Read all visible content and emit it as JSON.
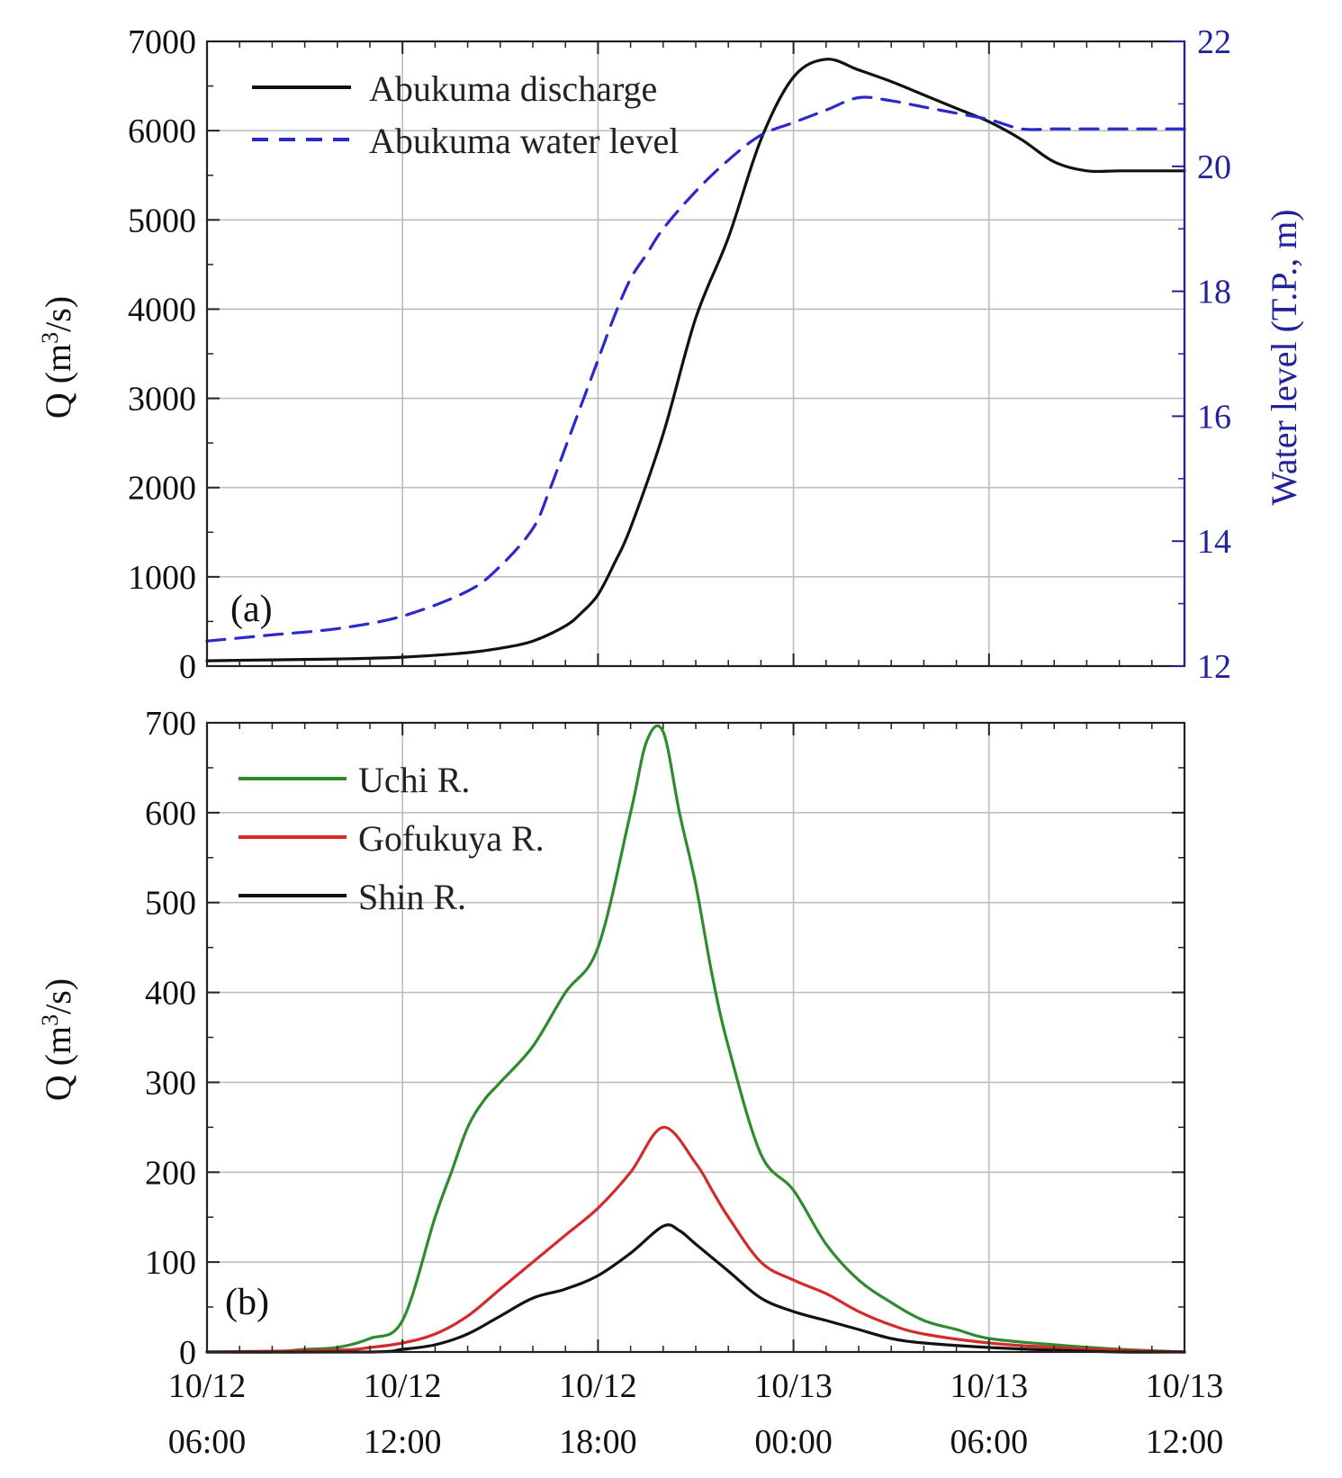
{
  "chart_data": [
    {
      "type": "line",
      "panel_label": "(a)",
      "x_unit": "hours since 10/12 06:00",
      "xlim": [
        0,
        30
      ],
      "ylabel_prefix": "Q (m",
      "ylabel_sup": "3",
      "ylabel_suffix": "/s)",
      "ylim": [
        0,
        7000
      ],
      "yticks": [
        "0",
        "1000",
        "2000",
        "3000",
        "4000",
        "5000",
        "6000",
        "7000"
      ],
      "y2label": "Water level (T.P., m)",
      "y2lim": [
        12,
        22
      ],
      "y2ticks": [
        "12",
        "14",
        "16",
        "18",
        "20",
        "22"
      ],
      "grid": true,
      "legend_position": "top-left",
      "series": [
        {
          "name": "Abukuma discharge",
          "axis": "left",
          "color": "#111111",
          "dash": "solid",
          "x": [
            0,
            2,
            4,
            6,
            8,
            9,
            10,
            11,
            11.5,
            12,
            12.5,
            13,
            14,
            15,
            16,
            17,
            18,
            19,
            20,
            21,
            22,
            23,
            24,
            25,
            26,
            27,
            28,
            29,
            30
          ],
          "y": [
            60,
            70,
            80,
            100,
            150,
            200,
            280,
            450,
            600,
            800,
            1150,
            1550,
            2600,
            3900,
            4800,
            5900,
            6600,
            6800,
            6680,
            6550,
            6400,
            6250,
            6100,
            5900,
            5650,
            5550,
            5550,
            5550,
            5550
          ]
        },
        {
          "name": "Abukuma water level",
          "axis": "right",
          "color": "#2a2acc",
          "dash": "dashed",
          "x": [
            0,
            2,
            4,
            6,
            8,
            9,
            10,
            10.5,
            11,
            11.5,
            12,
            12.5,
            13,
            13.5,
            14,
            15,
            16,
            17,
            18,
            19,
            20,
            21,
            22,
            23,
            24,
            25,
            26,
            27,
            28,
            29,
            30
          ],
          "y": [
            12.4,
            12.5,
            12.6,
            12.8,
            13.2,
            13.6,
            14.2,
            14.8,
            15.5,
            16.2,
            16.9,
            17.6,
            18.2,
            18.6,
            19.0,
            19.6,
            20.1,
            20.5,
            20.7,
            20.9,
            21.1,
            21.05,
            20.95,
            20.85,
            20.75,
            20.6,
            20.6,
            20.6,
            20.6,
            20.6,
            20.6
          ]
        }
      ]
    },
    {
      "type": "line",
      "panel_label": "(b)",
      "x_unit": "hours since 10/12 06:00",
      "xlim": [
        0,
        30
      ],
      "xtick_dates": [
        "10/12",
        "10/12",
        "10/12",
        "10/13",
        "10/13",
        "10/13"
      ],
      "xtick_times": [
        "06:00",
        "12:00",
        "18:00",
        "00:00",
        "06:00",
        "12:00"
      ],
      "ylabel_prefix": "Q (m",
      "ylabel_sup": "3",
      "ylabel_suffix": "/s)",
      "ylim": [
        0,
        700
      ],
      "yticks": [
        "0",
        "100",
        "200",
        "300",
        "400",
        "500",
        "600",
        "700"
      ],
      "grid": true,
      "legend_position": "top-left",
      "series": [
        {
          "name": "Uchi R.",
          "color": "#2e8b2e",
          "x": [
            0,
            2,
            3,
            4,
            5,
            6,
            7,
            7.5,
            8,
            8.5,
            9,
            10,
            11,
            12,
            13,
            13.5,
            14,
            14.5,
            15,
            15.5,
            16,
            17,
            18,
            19,
            20,
            21,
            22,
            23,
            24,
            26,
            28,
            30
          ],
          "y": [
            0,
            0,
            3,
            5,
            15,
            35,
            150,
            200,
            250,
            280,
            300,
            340,
            400,
            450,
            600,
            680,
            690,
            600,
            520,
            420,
            340,
            220,
            180,
            120,
            80,
            55,
            35,
            25,
            15,
            8,
            3,
            0
          ],
          "smooth": true
        },
        {
          "name": "Gofukuya R.",
          "color": "#d42a2a",
          "x": [
            0,
            4,
            5,
            6,
            7,
            8,
            9,
            10,
            11,
            12,
            13,
            14,
            15,
            15.5,
            16,
            17,
            18,
            19,
            20,
            21,
            22,
            24,
            26,
            28,
            30
          ],
          "y": [
            0,
            2,
            5,
            10,
            20,
            40,
            70,
            100,
            130,
            160,
            200,
            250,
            210,
            180,
            150,
            100,
            80,
            65,
            45,
            30,
            20,
            10,
            5,
            2,
            0
          ],
          "smooth": true
        },
        {
          "name": "Shin R.",
          "color": "#111111",
          "x": [
            0,
            5,
            6,
            7,
            8,
            9,
            10,
            11,
            12,
            13,
            14,
            14.5,
            15,
            16,
            17,
            18,
            19,
            20,
            21,
            22,
            24,
            26,
            28,
            30
          ],
          "y": [
            0,
            0,
            3,
            8,
            20,
            40,
            60,
            70,
            85,
            110,
            140,
            135,
            120,
            90,
            60,
            45,
            35,
            25,
            15,
            10,
            5,
            2,
            0,
            0
          ],
          "smooth": true
        }
      ]
    }
  ]
}
